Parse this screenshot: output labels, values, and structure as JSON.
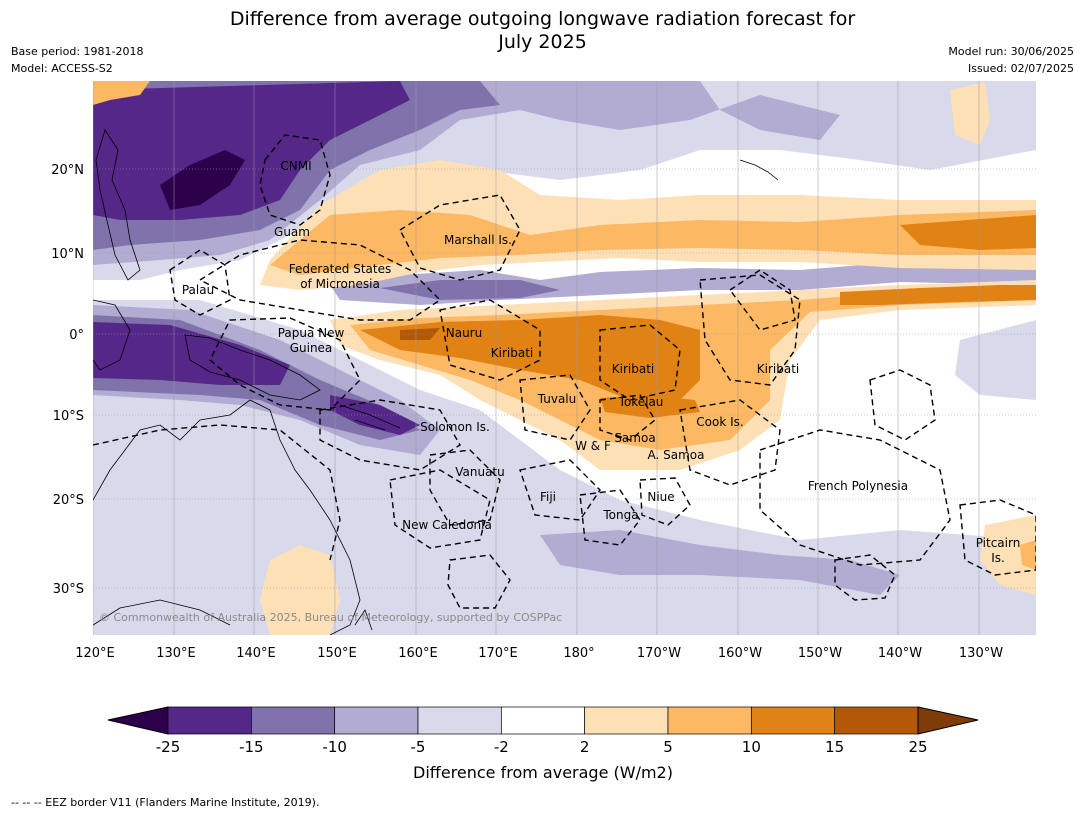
{
  "title_line1": "Difference from average outgoing longwave radiation forecast for",
  "title_line2": "July 2025",
  "base_period": "Base period: 1981-2018",
  "model": "Model: ACCESS-S2",
  "model_run": "Model run: 30/06/2025",
  "issued": "Issued: 02/07/2025",
  "lat_labels": [
    "20°N",
    "10°N",
    "0°",
    "10°S",
    "20°S",
    "30°S"
  ],
  "lon_labels": [
    "120°E",
    "130°E",
    "140°E",
    "150°E",
    "160°E",
    "170°E",
    "180°",
    "170°W",
    "160°W",
    "150°W",
    "140°W",
    "130°W"
  ],
  "regions": [
    {
      "name": "cnmi",
      "text": "CNMI"
    },
    {
      "name": "guam",
      "text": "Guam"
    },
    {
      "name": "marshall",
      "text": "Marshall Is."
    },
    {
      "name": "fsm-1",
      "text": "Federated States"
    },
    {
      "name": "fsm-2",
      "text": "of Micronesia"
    },
    {
      "name": "palau",
      "text": "Palau"
    },
    {
      "name": "png-1",
      "text": "Papua New"
    },
    {
      "name": "png-2",
      "text": "Guinea"
    },
    {
      "name": "nauru",
      "text": "Nauru"
    },
    {
      "name": "kiribati-w",
      "text": "Kiribati"
    },
    {
      "name": "kiribati-c",
      "text": "Kiribati"
    },
    {
      "name": "kiribati-e",
      "text": "Kiribati"
    },
    {
      "name": "tuvalu",
      "text": "Tuvalu"
    },
    {
      "name": "tokelau",
      "text": "Tokelau"
    },
    {
      "name": "cook",
      "text": "Cook Is."
    },
    {
      "name": "solomon",
      "text": "Solomon Is."
    },
    {
      "name": "samoa",
      "text": "Samoa"
    },
    {
      "name": "wf",
      "text": "W & F"
    },
    {
      "name": "asamoa",
      "text": "A. Samoa"
    },
    {
      "name": "vanuatu",
      "text": "Vanuatu"
    },
    {
      "name": "fiji",
      "text": "Fiji"
    },
    {
      "name": "niue",
      "text": "Niue"
    },
    {
      "name": "french-polynesia",
      "text": "French Polynesia"
    },
    {
      "name": "tonga",
      "text": "Tonga"
    },
    {
      "name": "new-caledonia",
      "text": "New Caledonia"
    },
    {
      "name": "pitcairn-1",
      "text": "Pitcairn"
    },
    {
      "name": "pitcairn-2",
      "text": "Is."
    }
  ],
  "copyright": "© Commonwealth of Australia 2025, Bureau of Meteorology, supported by COSPPac",
  "colorbar": {
    "title": "Difference from average (W/m2)",
    "ticks": [
      "-25",
      "-15",
      "-10",
      "-5",
      "-2",
      "2",
      "5",
      "10",
      "15",
      "25"
    ],
    "colors": {
      "below": "#2d004b",
      "c1": "#542788",
      "c2": "#8073ac",
      "c3": "#b2abd2",
      "c4": "#d8daeb",
      "c5": "#ffffff",
      "c6": "#fee0b6",
      "c7": "#fdb863",
      "c8": "#e08214",
      "c9": "#b35806",
      "above": "#7f3b08"
    }
  },
  "footnote": "--  --  -- EEZ border V11 (Flanders Marine Institute, 2019)."
}
